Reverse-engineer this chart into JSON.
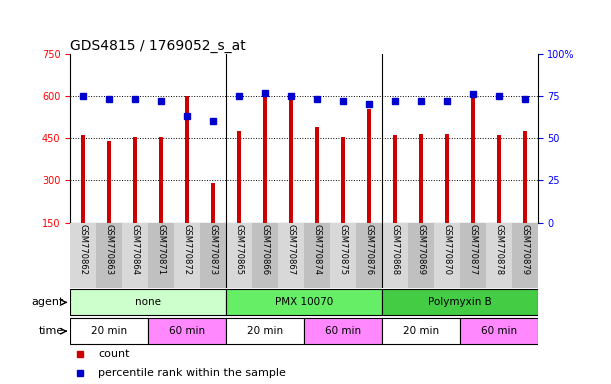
{
  "title": "GDS4815 / 1769052_s_at",
  "samples": [
    "GSM770862",
    "GSM770863",
    "GSM770864",
    "GSM770871",
    "GSM770872",
    "GSM770873",
    "GSM770865",
    "GSM770866",
    "GSM770867",
    "GSM770874",
    "GSM770875",
    "GSM770876",
    "GSM770868",
    "GSM770869",
    "GSM770870",
    "GSM770877",
    "GSM770878",
    "GSM770879"
  ],
  "counts": [
    460,
    440,
    455,
    455,
    600,
    290,
    475,
    600,
    590,
    490,
    455,
    555,
    460,
    465,
    465,
    615,
    460,
    475
  ],
  "percentiles": [
    75,
    73,
    73,
    72,
    63,
    60,
    75,
    77,
    75,
    73,
    72,
    70,
    72,
    72,
    72,
    76,
    75,
    73
  ],
  "ylim_left": [
    150,
    750
  ],
  "ylim_right": [
    0,
    100
  ],
  "yticks_left": [
    150,
    300,
    450,
    600,
    750
  ],
  "yticks_right": [
    0,
    25,
    50,
    75,
    100
  ],
  "bar_color": "#cc0000",
  "dot_color": "#0000cc",
  "agent_groups": [
    {
      "label": "none",
      "start": 0,
      "end": 6,
      "color": "#ccffcc"
    },
    {
      "label": "PMX 10070",
      "start": 6,
      "end": 12,
      "color": "#66ee66"
    },
    {
      "label": "Polymyxin B",
      "start": 12,
      "end": 18,
      "color": "#44cc44"
    }
  ],
  "time_groups": [
    {
      "label": "20 min",
      "start": 0,
      "end": 3,
      "color": "#ffffff"
    },
    {
      "label": "60 min",
      "start": 3,
      "end": 6,
      "color": "#ff88ff"
    },
    {
      "label": "20 min",
      "start": 6,
      "end": 9,
      "color": "#ffffff"
    },
    {
      "label": "60 min",
      "start": 9,
      "end": 12,
      "color": "#ff88ff"
    },
    {
      "label": "20 min",
      "start": 12,
      "end": 15,
      "color": "#ffffff"
    },
    {
      "label": "60 min",
      "start": 15,
      "end": 18,
      "color": "#ff88ff"
    }
  ],
  "legend_count_color": "#cc0000",
  "legend_dot_color": "#0000cc",
  "title_fontsize": 10,
  "tick_fontsize": 7,
  "bar_width": 0.15
}
